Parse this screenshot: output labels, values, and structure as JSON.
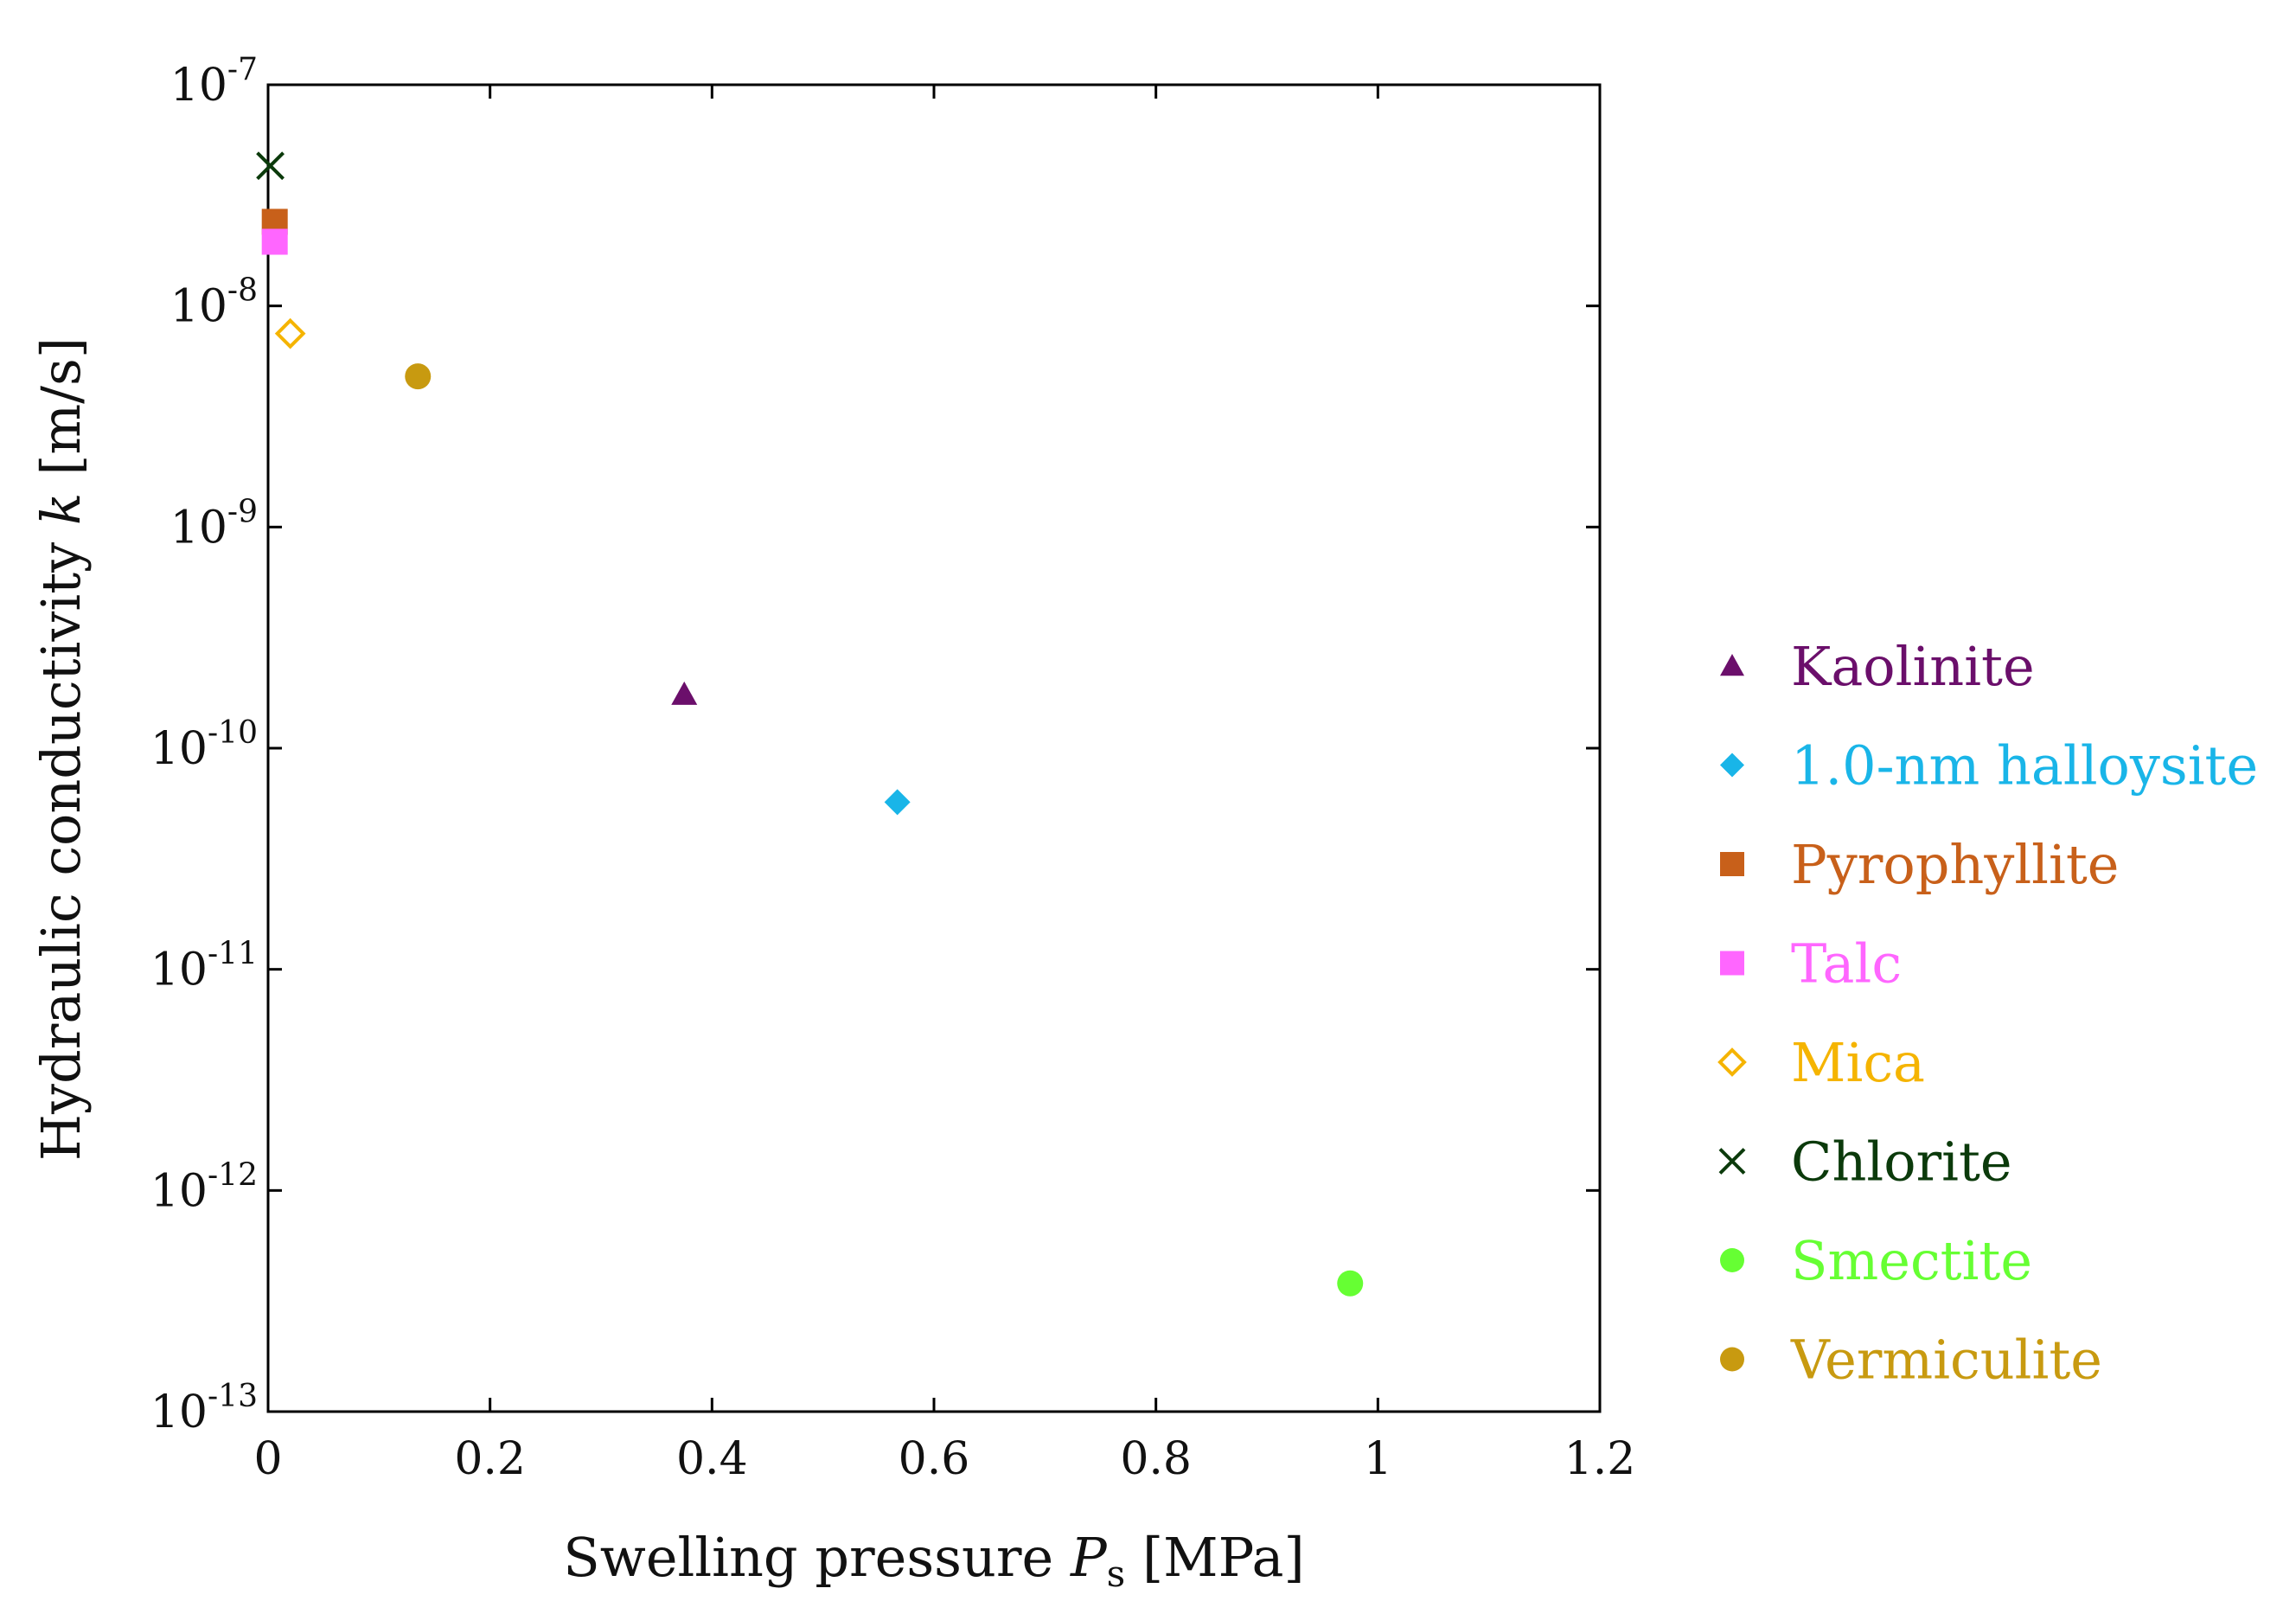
{
  "chart_data": {
    "type": "scatter",
    "title": "",
    "xlabel": {
      "main": "Swelling pressure ",
      "var": "P",
      "sub": "s",
      "unit": " [MPa]"
    },
    "ylabel": {
      "main": "Hydraulic conductivity ",
      "var": "k",
      "unit": " [m/s]"
    },
    "xlim": [
      0,
      1.2
    ],
    "ylim_log10": [
      -13,
      -7
    ],
    "x_ticks": [
      0,
      0.2,
      0.4,
      0.6,
      0.8,
      1,
      1.2
    ],
    "x_tick_labels": [
      "0",
      "0.2",
      "0.4",
      "0.6",
      "0.8",
      "1",
      "1.2"
    ],
    "y_tick_exponents": [
      -13,
      -12,
      -11,
      -10,
      -9,
      -8,
      -7
    ],
    "y_tick_base": "10",
    "y_tick_labels": [
      "-13",
      "-12",
      "-11",
      "-10",
      "-9",
      "-8",
      "-7"
    ],
    "legend_position": "right",
    "series": [
      {
        "name": "Kaolinite",
        "marker": "triangle",
        "color": "#6B0F6B",
        "x": 0.375,
        "y": 1.75e-10
      },
      {
        "name": "1.0-nm halloysite",
        "marker": "diamond",
        "color": "#19B5E8",
        "x": 0.567,
        "y": 5.7e-11
      },
      {
        "name": "Pyrophyllite",
        "marker": "square",
        "color": "#C8601A",
        "x": 0.006,
        "y": 2.4e-08
      },
      {
        "name": "Talc",
        "marker": "square",
        "color": "#FF66FF",
        "x": 0.006,
        "y": 1.95e-08
      },
      {
        "name": "Mica",
        "marker": "diamond-open",
        "color": "#F5B400",
        "x": 0.02,
        "y": 7.5e-09
      },
      {
        "name": "Chlorite",
        "marker": "x",
        "color": "#0B3A0B",
        "x": 0.002,
        "y": 4.3e-08
      },
      {
        "name": "Smectite",
        "marker": "circle",
        "color": "#66FF33",
        "x": 0.975,
        "y": 3.8e-13
      },
      {
        "name": "Vermiculite",
        "marker": "circle",
        "color": "#C89A10",
        "x": 0.135,
        "y": 4.8e-09
      }
    ]
  }
}
